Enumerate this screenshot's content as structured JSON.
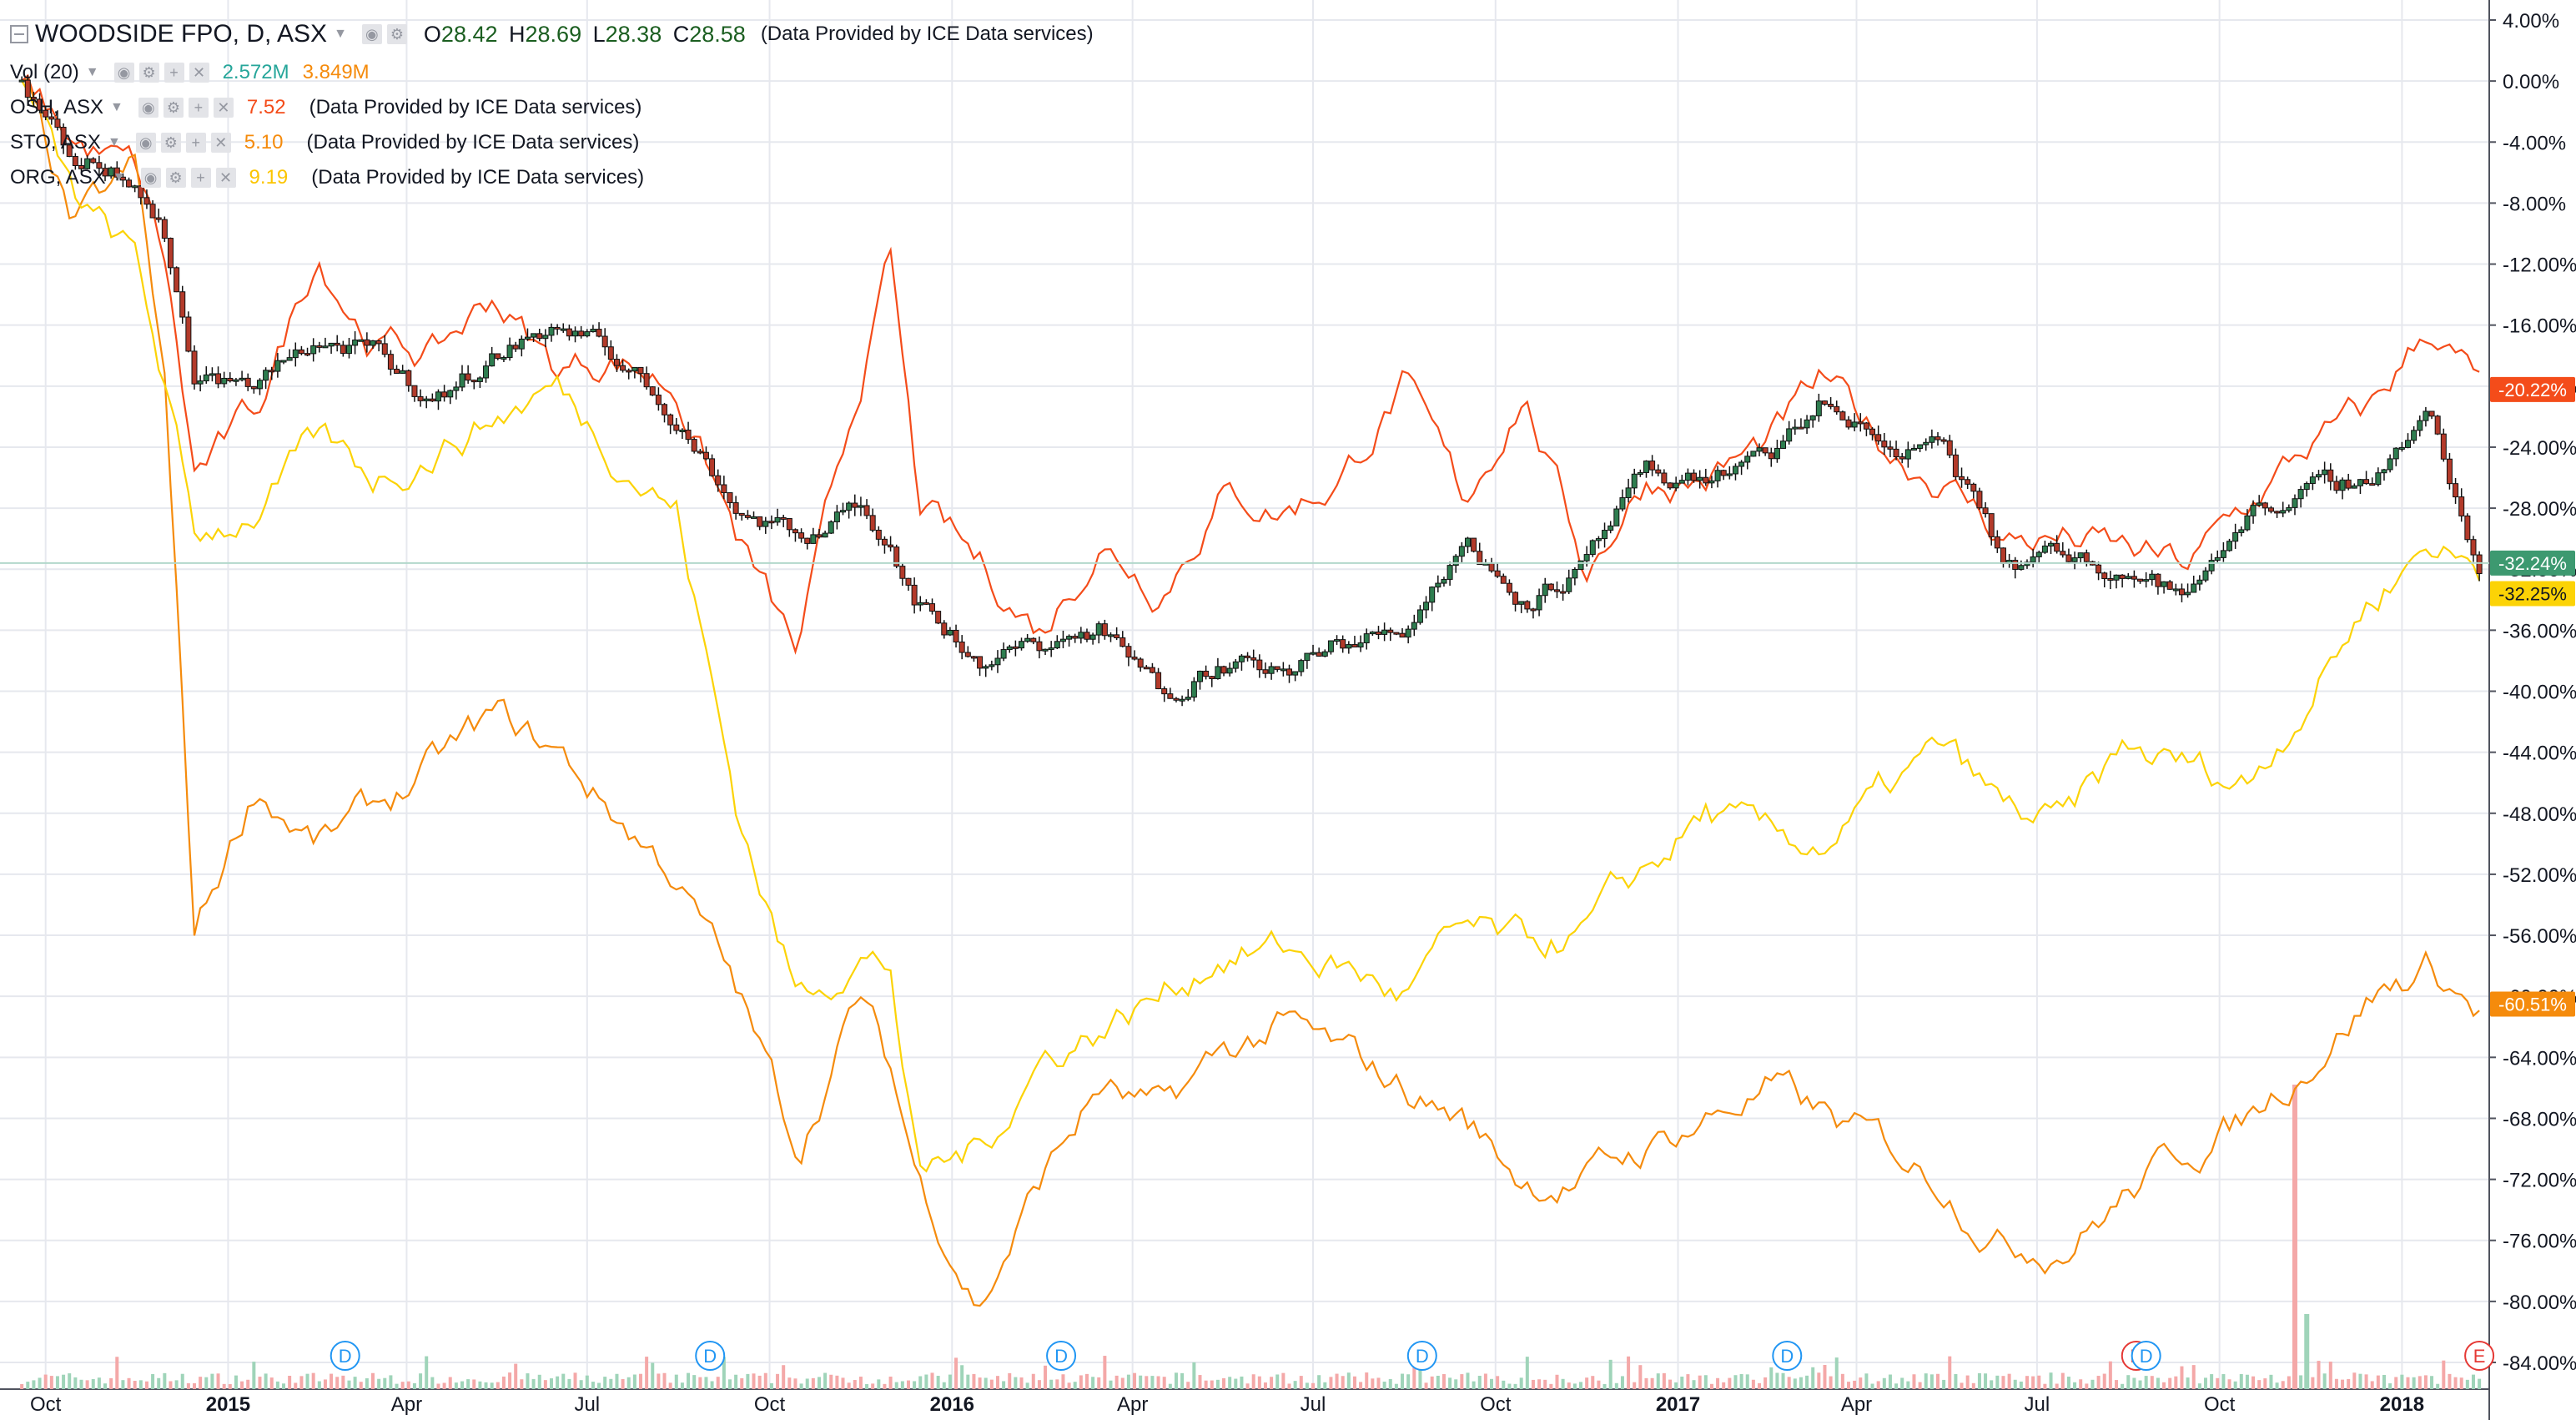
{
  "legend": {
    "main": {
      "name": "WOODSIDE FPO, D, ASX",
      "open_label": "O",
      "open": "28.42",
      "high_label": "H",
      "high": "28.69",
      "low_label": "L",
      "low": "28.38",
      "close_label": "C",
      "close": "28.58",
      "provider": "(Data Provided by ICE Data services)"
    },
    "volume": {
      "name": "Vol (20)",
      "value1": "2.572M",
      "value2": "3.849M"
    },
    "compare": [
      {
        "name": "OSH, ASX",
        "value": "7.52",
        "provider": "(Data Provided by ICE Data services)"
      },
      {
        "name": "STO, ASX",
        "value": "5.10",
        "provider": "(Data Provided by ICE Data services)"
      },
      {
        "name": "ORG, ASX",
        "value": "9.19",
        "provider": "(Data Provided by ICE Data services)"
      }
    ]
  },
  "colors": {
    "up": "#2e7d4f",
    "down": "#b33a2a",
    "osh": "#f44c1a",
    "sto": "#f58b0c",
    "org": "#fcd306",
    "wpl_tag": "#3d9970",
    "volume_up": "#9fd4b9",
    "volume_down": "#f4a8a8",
    "grid": "#e6e8ee",
    "axis_text": "#131722",
    "dividend": "#2196f3",
    "earnings": "#e53935"
  },
  "chart_data": {
    "type": "line",
    "subtype": "percent-comparison with candlesticks",
    "x": [
      "2014-09-19",
      "2014-10-15",
      "2014-11-15",
      "2014-11-30",
      "2014-12-15",
      "2015-01-15",
      "2015-02-15",
      "2015-03-15",
      "2015-04-15",
      "2015-05-15",
      "2015-06-15",
      "2015-07-15",
      "2015-08-15",
      "2015-09-15",
      "2015-10-15",
      "2015-11-15",
      "2015-12-01",
      "2015-12-15",
      "2016-01-15",
      "2016-02-15",
      "2016-03-15",
      "2016-04-15",
      "2016-05-15",
      "2016-06-15",
      "2016-07-15",
      "2016-08-15",
      "2016-09-15",
      "2016-10-15",
      "2016-11-15",
      "2016-12-15",
      "2017-01-15",
      "2017-02-15",
      "2017-03-15",
      "2017-04-15",
      "2017-05-15",
      "2017-06-15",
      "2017-07-15",
      "2017-08-15",
      "2017-09-15",
      "2017-10-15",
      "2017-11-15",
      "2017-12-15",
      "2018-01-15",
      "2018-02-09"
    ],
    "ylim": [
      -84,
      4
    ],
    "y_unit": "%",
    "y_ticks": [
      "4.00%",
      "0.00%",
      "-4.00%",
      "-8.00%",
      "-12.00%",
      "-16.00%",
      "-20.00%",
      "-24.00%",
      "-28.00%",
      "-32.00%",
      "-36.00%",
      "-40.00%",
      "-44.00%",
      "-48.00%",
      "-52.00%",
      "-56.00%",
      "-60.00%",
      "-64.00%",
      "-68.00%",
      "-72.00%",
      "-76.00%",
      "-80.00%",
      "-84.00%"
    ],
    "x_ticks": [
      "Oct",
      "2015",
      "Apr",
      "Jul",
      "Oct",
      "2016",
      "Apr",
      "Jul",
      "Oct",
      "2017",
      "Apr",
      "Jul",
      "Oct",
      "2018"
    ],
    "x_tick_dates": [
      "2014-10-01",
      "2015-01-01",
      "2015-04-01",
      "2015-07-01",
      "2015-10-01",
      "2016-01-01",
      "2016-04-01",
      "2016-07-01",
      "2016-10-01",
      "2017-01-01",
      "2017-04-01",
      "2017-07-01",
      "2017-10-01",
      "2018-01-01"
    ],
    "series": [
      {
        "name": "WOODSIDE FPO",
        "style": "candles",
        "values": [
          0,
          -5,
          -6,
          -10,
          -19,
          -20,
          -17,
          -18,
          -21,
          -18,
          -16,
          -18,
          -22,
          -28,
          -30,
          -28,
          -30,
          -34,
          -38,
          -37,
          -36,
          -40,
          -38,
          -39,
          -37,
          -36,
          -30,
          -34,
          -32,
          -26,
          -26,
          -25,
          -21,
          -24,
          -24,
          -32,
          -31,
          -32,
          -34,
          -28,
          -27,
          -26,
          -22,
          -32
        ]
      },
      {
        "name": "OSH, ASX",
        "style": "line",
        "values": [
          0,
          -4,
          -6,
          -12,
          -26,
          -22,
          -11,
          -17,
          -18,
          -14,
          -19,
          -18,
          -20,
          -30,
          -38,
          -20,
          -12,
          -28,
          -32,
          -36,
          -30,
          -33,
          -27,
          -28,
          -26,
          -20,
          -28,
          -20,
          -32,
          -26,
          -26,
          -24,
          -20,
          -24,
          -26,
          -30,
          -30,
          -31,
          -32,
          -28,
          -24,
          -22,
          -16,
          -20
        ]
      },
      {
        "name": "STO, ASX",
        "style": "line",
        "values": [
          0,
          -10,
          -6,
          -20,
          -56,
          -46,
          -50,
          -48,
          -45,
          -42,
          -44,
          -48,
          -52,
          -60,
          -70,
          -60,
          -65,
          -72,
          -80,
          -72,
          -66,
          -68,
          -64,
          -62,
          -64,
          -66,
          -68,
          -72,
          -72,
          -70,
          -68,
          -66,
          -68,
          -70,
          -72,
          -76,
          -76,
          -73,
          -70,
          -68,
          -64,
          -60,
          -58,
          -61
        ]
      },
      {
        "name": "ORG, ASX",
        "style": "line",
        "values": [
          0,
          -8,
          -12,
          -20,
          -30,
          -28,
          -24,
          -26,
          -24,
          -22,
          -20,
          -24,
          -28,
          -48,
          -60,
          -57,
          -58,
          -72,
          -70,
          -64,
          -62,
          -60,
          -57,
          -57,
          -58,
          -60,
          -56,
          -57,
          -56,
          -52,
          -48,
          -50,
          -50,
          -47,
          -44,
          -48,
          -49,
          -44,
          -45,
          -46,
          -40,
          -34,
          -30,
          -32
        ]
      }
    ],
    "last_value_tags": [
      {
        "label": "-20.22%",
        "series": "OSH, ASX"
      },
      {
        "label": "-32.24%",
        "series": "WOODSIDE FPO"
      },
      {
        "label": "-32.25%",
        "series": "ORG, ASX"
      },
      {
        "label": "-60.51%",
        "series": "STO, ASX"
      }
    ],
    "events": [
      {
        "date": "2015-03-01",
        "label": "D"
      },
      {
        "date": "2015-09-01",
        "label": "D"
      },
      {
        "date": "2016-02-25",
        "label": "D"
      },
      {
        "date": "2016-08-25",
        "label": "D"
      },
      {
        "date": "2017-02-25",
        "label": "D"
      },
      {
        "date": "2017-08-20",
        "label": "E"
      },
      {
        "date": "2017-08-25",
        "label": "D"
      },
      {
        "date": "2018-02-09",
        "label": "E"
      }
    ]
  }
}
